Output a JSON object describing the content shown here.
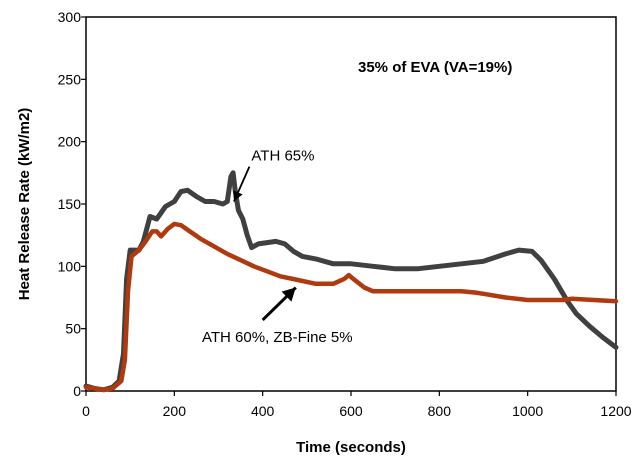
{
  "chart_data": {
    "type": "line",
    "title": "",
    "annotation_title": "35% of EVA (VA=19%)",
    "xlabel": "Time (seconds)",
    "ylabel": "Heat Release Rate (kW/m2)",
    "xlim": [
      0,
      1200
    ],
    "ylim": [
      0,
      300
    ],
    "x_ticks": [
      "0",
      "200",
      "400",
      "600",
      "800",
      "1000",
      "1200"
    ],
    "y_ticks": [
      "0",
      "50",
      "100",
      "150",
      "200",
      "250",
      "300"
    ],
    "grid": false,
    "legend": "none",
    "series": [
      {
        "name": "ATH 65%",
        "color": "#404040",
        "points": [
          [
            0,
            4
          ],
          [
            20,
            2
          ],
          [
            40,
            1
          ],
          [
            60,
            3
          ],
          [
            75,
            8
          ],
          [
            85,
            30
          ],
          [
            92,
            90
          ],
          [
            100,
            113
          ],
          [
            120,
            113
          ],
          [
            130,
            120
          ],
          [
            145,
            140
          ],
          [
            160,
            138
          ],
          [
            180,
            148
          ],
          [
            200,
            152
          ],
          [
            215,
            160
          ],
          [
            230,
            161
          ],
          [
            250,
            156
          ],
          [
            270,
            152
          ],
          [
            290,
            152
          ],
          [
            310,
            150
          ],
          [
            320,
            152
          ],
          [
            328,
            172
          ],
          [
            333,
            175
          ],
          [
            338,
            160
          ],
          [
            345,
            145
          ],
          [
            355,
            138
          ],
          [
            365,
            125
          ],
          [
            375,
            115
          ],
          [
            390,
            118
          ],
          [
            410,
            119
          ],
          [
            430,
            120
          ],
          [
            450,
            118
          ],
          [
            470,
            112
          ],
          [
            490,
            108
          ],
          [
            520,
            106
          ],
          [
            560,
            102
          ],
          [
            600,
            102
          ],
          [
            650,
            100
          ],
          [
            700,
            98
          ],
          [
            750,
            98
          ],
          [
            800,
            100
          ],
          [
            850,
            102
          ],
          [
            900,
            104
          ],
          [
            950,
            110
          ],
          [
            980,
            113
          ],
          [
            1010,
            112
          ],
          [
            1030,
            105
          ],
          [
            1060,
            90
          ],
          [
            1090,
            72
          ],
          [
            1110,
            62
          ],
          [
            1140,
            52
          ],
          [
            1170,
            43
          ],
          [
            1200,
            35
          ]
        ]
      },
      {
        "name": "ATH 60%, ZB-Fine 5%",
        "color": "#b03a10",
        "points": [
          [
            0,
            3
          ],
          [
            20,
            2
          ],
          [
            40,
            1
          ],
          [
            60,
            2
          ],
          [
            80,
            8
          ],
          [
            88,
            25
          ],
          [
            95,
            80
          ],
          [
            103,
            108
          ],
          [
            120,
            113
          ],
          [
            135,
            120
          ],
          [
            150,
            128
          ],
          [
            160,
            128
          ],
          [
            170,
            124
          ],
          [
            185,
            130
          ],
          [
            200,
            134
          ],
          [
            215,
            133
          ],
          [
            235,
            128
          ],
          [
            260,
            122
          ],
          [
            290,
            116
          ],
          [
            320,
            110
          ],
          [
            350,
            105
          ],
          [
            380,
            100
          ],
          [
            410,
            96
          ],
          [
            440,
            92
          ],
          [
            480,
            89
          ],
          [
            520,
            86
          ],
          [
            560,
            86
          ],
          [
            585,
            90
          ],
          [
            595,
            93
          ],
          [
            605,
            90
          ],
          [
            630,
            83
          ],
          [
            650,
            80
          ],
          [
            700,
            80
          ],
          [
            750,
            80
          ],
          [
            800,
            80
          ],
          [
            850,
            80
          ],
          [
            880,
            79
          ],
          [
            900,
            78
          ],
          [
            950,
            75
          ],
          [
            1000,
            73
          ],
          [
            1050,
            73
          ],
          [
            1080,
            73
          ],
          [
            1100,
            74
          ],
          [
            1150,
            73
          ],
          [
            1200,
            72
          ]
        ]
      }
    ],
    "annotations": [
      {
        "text": "ATH 65%",
        "series": "ATH 65%",
        "arrow_from": [
          370,
          180
        ],
        "arrow_to": [
          335,
          152
        ]
      },
      {
        "text": "ATH 60%, ZB-Fine 5%",
        "series": "ATH 60%, ZB-Fine 5%",
        "arrow_from": [
          400,
          57
        ],
        "arrow_to": [
          475,
          83
        ]
      }
    ]
  }
}
